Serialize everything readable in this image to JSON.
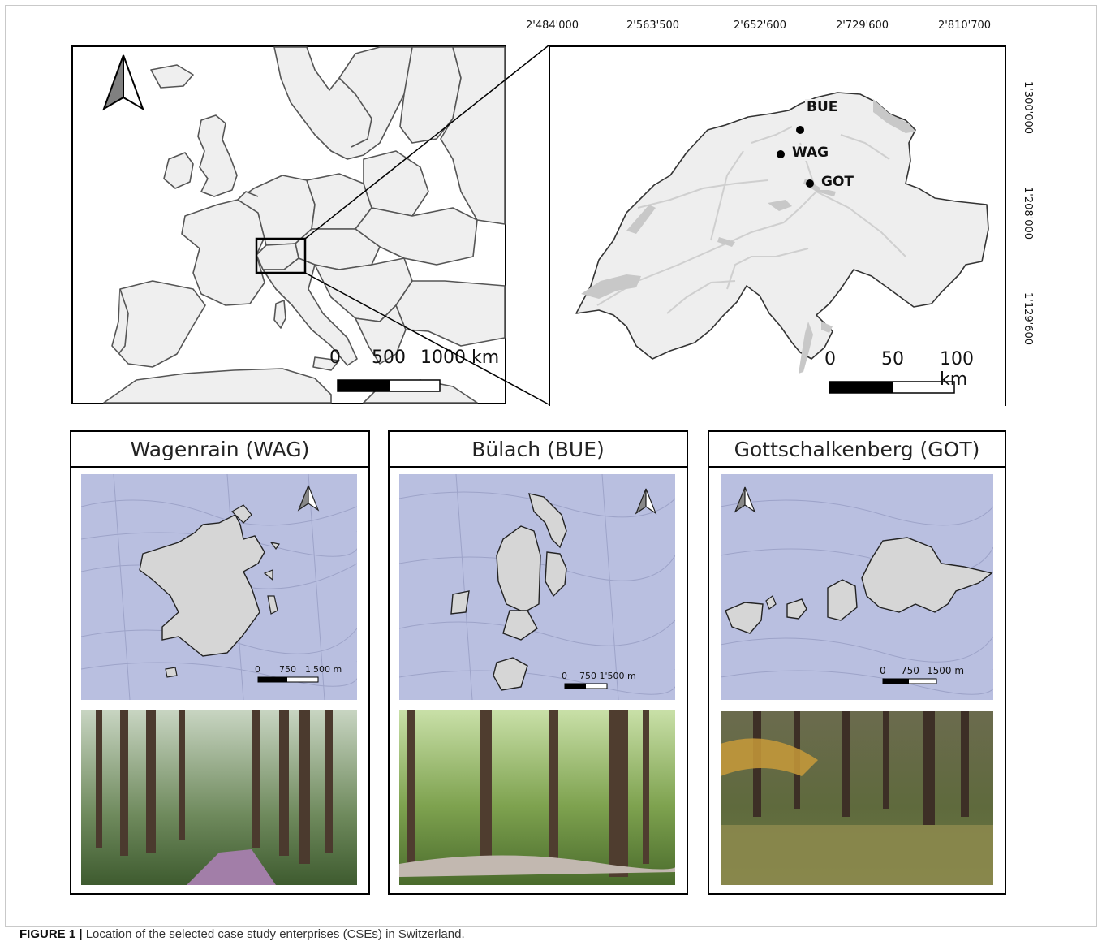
{
  "figure": {
    "caption_label": "FIGURE 1 |",
    "caption_text": "Location of the selected case study enterprises (CSEs) in Switzerland."
  },
  "europe_map": {
    "scale_labels": [
      "0",
      "500",
      "1000 km"
    ]
  },
  "swiss_map": {
    "top_coords": [
      "2'484'000",
      "2'563'500",
      "2'652'600",
      "2'729'600",
      "2'810'700"
    ],
    "right_coords": [
      "1'300'000",
      "1'208'000",
      "1'129'600"
    ],
    "sites": [
      {
        "code": "BUE"
      },
      {
        "code": "WAG"
      },
      {
        "code": "GOT"
      }
    ],
    "scale_labels": [
      "0",
      "50",
      "100 km"
    ]
  },
  "panels": [
    {
      "title": "Wagenrain (WAG)",
      "scale_labels": [
        "0",
        "750",
        "1'500 m"
      ]
    },
    {
      "title": "Bülach (BUE)",
      "scale_labels": [
        "0",
        "750 1'500 m"
      ]
    },
    {
      "title": "Gottschalkenberg (GOT)",
      "scale_labels": [
        "0",
        "750",
        "1500 m"
      ]
    }
  ],
  "colors": {
    "map_fill": "#eeeeee",
    "lake": "#c8c8c8",
    "topo_bg": "#b9bfe0",
    "forest_fill": "#d6d6d6"
  }
}
